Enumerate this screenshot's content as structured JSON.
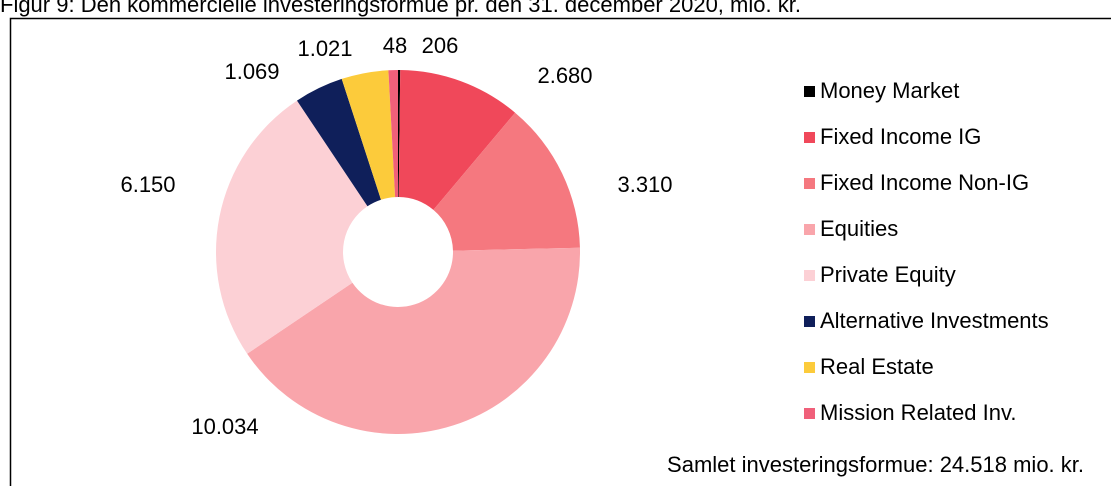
{
  "chart_data": {
    "type": "donut",
    "title": "Figur 9: Den kommercielle investeringsformue pr. den 31. december 2020, mio. kr.",
    "categories": [
      "Money Market",
      "Fixed Income IG",
      "Fixed Income Non-IG",
      "Equities",
      "Private Equity",
      "Alternative Investments",
      "Real Estate",
      "Mission Related Inv."
    ],
    "values": [
      48,
      2680,
      3310,
      10034,
      6150,
      1069,
      1021,
      206
    ],
    "value_labels": [
      "48",
      "2.680",
      "3.310",
      "10.034",
      "6.150",
      "1.069",
      "1.021",
      "206"
    ],
    "colors": [
      "#000000",
      "#f0485a",
      "#f5787f",
      "#f9a5ab",
      "#fcd0d5",
      "#0f1f5a",
      "#fccb3b",
      "#f0607a"
    ],
    "legend": "right",
    "note": "Samlet investeringsformue: 24.518 mio. kr."
  }
}
